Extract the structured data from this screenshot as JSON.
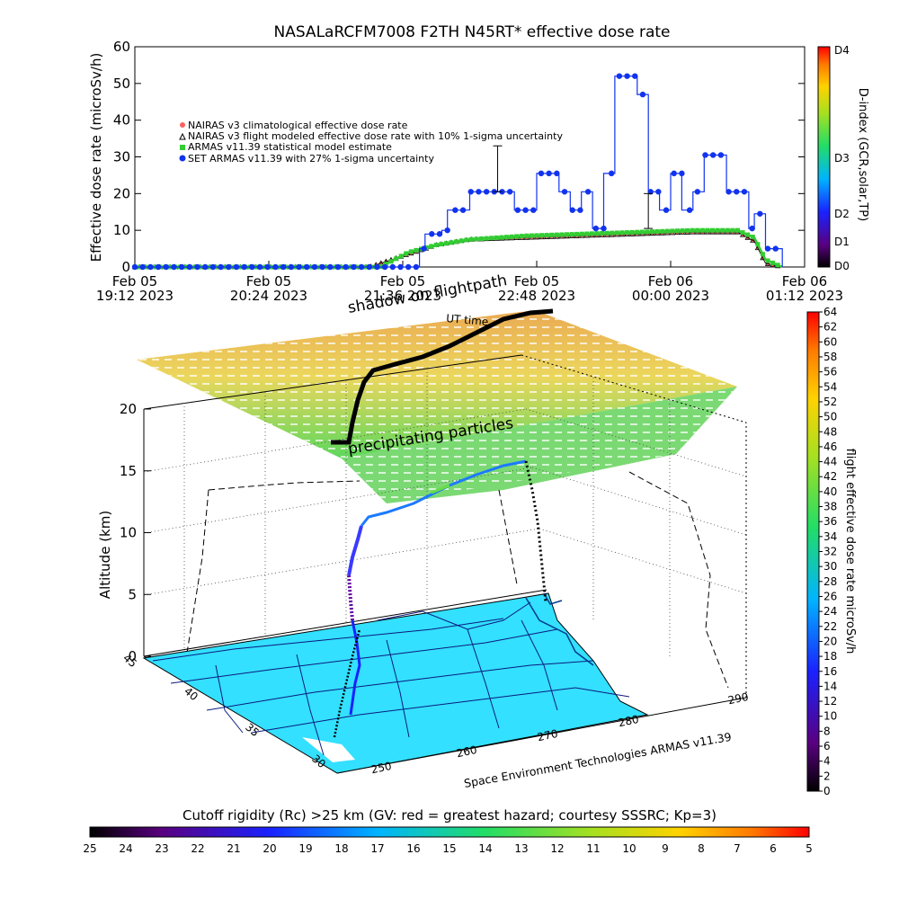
{
  "title": "NASALaRCFM7008  F2TH N45RT* effective dose rate",
  "top_chart": {
    "ylabel": "Effective dose rate (microSv/h)",
    "ylim": [
      0,
      60
    ],
    "yticks": [
      "0",
      "10",
      "20",
      "30",
      "40",
      "50",
      "60"
    ],
    "xticks": [
      {
        "line1": "Feb 05",
        "line2": "19:12 2023"
      },
      {
        "line1": "Feb 05",
        "line2": "20:24 2023"
      },
      {
        "line1": "Feb 05",
        "line2": "21:36 2023"
      },
      {
        "line1": "Feb 05",
        "line2": "22:48 2023"
      },
      {
        "line1": "Feb 06",
        "line2": "00:00 2023"
      },
      {
        "line1": "Feb 06",
        "line2": "01:12 2023"
      }
    ],
    "legend": [
      {
        "label": "NAIRAS v3 climatological effective dose rate",
        "color": "#ff6060",
        "marker": "circle"
      },
      {
        "label": "NAIRAS v3 flight modeled effective dose rate with 10% 1-sigma uncertainty",
        "color": "#000000",
        "marker": "triangle"
      },
      {
        "label": "ARMAS v11.39 statistical model estimate",
        "color": "#33cc33",
        "marker": "square"
      },
      {
        "label": "SET ARMAS v11.39 with 27% 1-sigma uncertainty",
        "color": "#1133ee",
        "marker": "circle"
      }
    ],
    "right_colorbar": {
      "label": "D-index (GCR,solar,TP)",
      "ticks": [
        "D4",
        "D3",
        "D2",
        "D1",
        "D0"
      ]
    }
  },
  "chart_data": [
    {
      "type": "line",
      "title": "NASALaRCFM7008  F2TH N45RT* effective dose rate",
      "xlabel": "",
      "ylabel": "Effective dose rate (microSv/h)",
      "x_unit": "hours since Feb 05 19:12 UTC",
      "xlim": [
        0,
        6
      ],
      "ylim": [
        0,
        60
      ],
      "series": [
        {
          "name": "SET ARMAS v11.39 with 27% 1-sigma uncertainty",
          "x": [
            0,
            2.4,
            2.55,
            2.6,
            2.75,
            2.8,
            2.95,
            3.0,
            3.3,
            3.4,
            3.6,
            3.8,
            3.9,
            4.0,
            4.1,
            4.2,
            4.3,
            4.5,
            4.6,
            4.7,
            4.8,
            4.9,
            5.0,
            5.1,
            5.3,
            5.5,
            5.55,
            5.6,
            5.65,
            5.8
          ],
          "y": [
            0,
            0,
            5,
            9,
            10,
            15.5,
            15.5,
            20.5,
            20.5,
            15.5,
            25.5,
            20.5,
            15.5,
            20.5,
            10.5,
            25.5,
            52,
            47,
            20.5,
            15.5,
            25.5,
            15.5,
            20.5,
            30.5,
            20.5,
            10.5,
            14.5,
            14.5,
            5,
            0
          ]
        },
        {
          "name": "ARMAS v11.39 statistical model estimate",
          "x": [
            0,
            2.2,
            2.45,
            2.7,
            3.0,
            3.5,
            4.0,
            4.5,
            5.0,
            5.4,
            5.55,
            5.65,
            5.8
          ],
          "y": [
            0,
            0,
            4,
            6,
            7.5,
            8.5,
            9,
            9.5,
            10,
            10,
            8,
            2,
            0
          ]
        },
        {
          "name": "NAIRAS v3 flight modeled effective dose rate with 10% 1-sigma uncertainty",
          "x": [
            0,
            2.1,
            2.4,
            2.7,
            3.0,
            3.5,
            4.0,
            4.5,
            5.0,
            5.4,
            5.55,
            5.65,
            5.8
          ],
          "y": [
            0,
            0,
            3,
            6,
            7.5,
            8,
            8.5,
            9,
            9.5,
            9.5,
            7,
            1,
            0
          ]
        },
        {
          "name": "NAIRAS v3 climatological effective dose rate",
          "x": [
            0,
            2.1,
            2.4,
            2.7,
            3.0,
            3.5,
            4.0,
            4.5,
            5.0,
            5.4,
            5.55,
            5.65,
            5.8
          ],
          "y": [
            0,
            0,
            3,
            6,
            7.5,
            8,
            8.5,
            9,
            9.5,
            9.5,
            7,
            1,
            0
          ]
        }
      ]
    },
    {
      "type": "scatter",
      "title": "shadow on flightpath",
      "zlabel": "Altitude (km)",
      "zlim": [
        0,
        20
      ],
      "zticks": [
        "0",
        "5",
        "10",
        "15",
        "20"
      ],
      "lat_ticks": [
        "30",
        "35",
        "40",
        "45"
      ],
      "lon_ticks": [
        "250",
        "260",
        "270",
        "280",
        "290"
      ],
      "colorbar": {
        "label": "flight effective dose rate microSv/h",
        "min": 0,
        "max": 64
      }
    }
  ],
  "map3d": {
    "annotations": {
      "shadow": "shadow on flightpath",
      "ut": "UT time",
      "precip": "precipitating particles",
      "credit": "Space Environment Technologies ARMAS v11.39"
    },
    "zlabel": "Altitude (km)",
    "zticks": [
      "0",
      "5",
      "10",
      "15",
      "20"
    ],
    "lat_ticks": [
      "30",
      "35",
      "40",
      "45"
    ],
    "lon_ticks": [
      "250",
      "260",
      "270",
      "280",
      "290"
    ]
  },
  "right_colorbar": {
    "label": "flight effective dose rate microSv/h",
    "ticks": [
      "0",
      "2",
      "4",
      "6",
      "8",
      "10",
      "12",
      "14",
      "16",
      "18",
      "20",
      "22",
      "24",
      "26",
      "28",
      "30",
      "32",
      "34",
      "36",
      "38",
      "40",
      "42",
      "44",
      "46",
      "48",
      "50",
      "52",
      "54",
      "56",
      "58",
      "60",
      "62",
      "64"
    ]
  },
  "bottom_colorbar": {
    "label": "Cutoff rigidity (Rc) >25 km (GV: red = greatest hazard; courtesy SSSRC; Kp=3)",
    "ticks": [
      "25",
      "24",
      "23",
      "22",
      "21",
      "20",
      "19",
      "18",
      "17",
      "16",
      "15",
      "14",
      "13",
      "12",
      "11",
      "10",
      "9",
      "8",
      "7",
      "6",
      "5"
    ]
  },
  "colors": {
    "armas_blue": "#1133ee",
    "armas_green": "#33cc33",
    "nairas_red": "#ff6060",
    "map_cyan": "#33e0ff"
  }
}
